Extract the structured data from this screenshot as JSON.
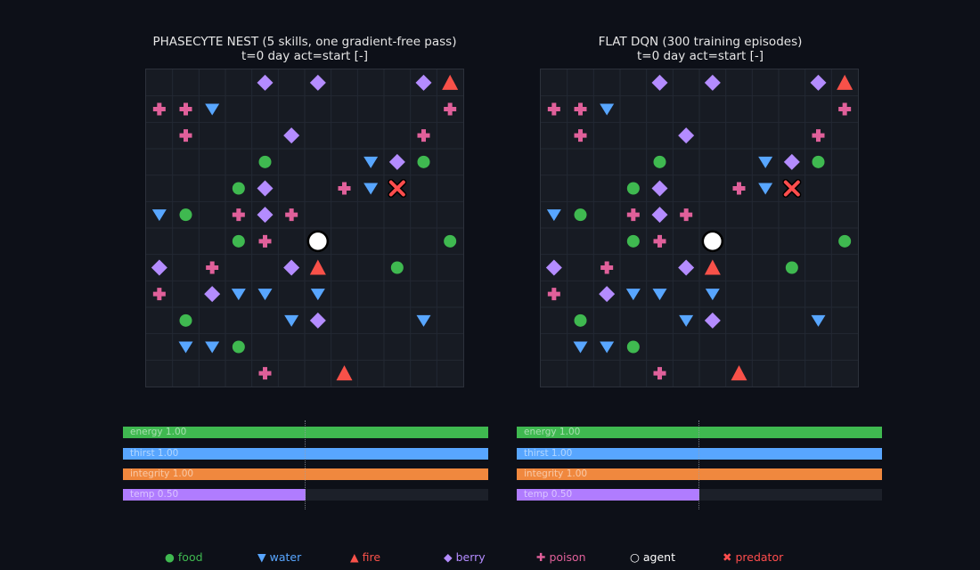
{
  "colors": {
    "food": "#3fb950",
    "water": "#58a6ff",
    "fire": "#f85149",
    "berry": "#b48cff",
    "poison": "#e0609a",
    "agent": "#ffffff",
    "predator": "#ff4d4d",
    "bar_energy": "#3fb950",
    "bar_thirst": "#58a6ff",
    "bar_integrity": "#f0883e",
    "bar_temp": "#b07cff"
  },
  "panels": [
    {
      "title_line1": "PHASECYTE NEST (5 skills, one gradient-free pass)",
      "title_line2": "t=0  day  act=start  [-]",
      "bars": [
        {
          "key": "energy",
          "label": "energy 1.00",
          "value": 1.0
        },
        {
          "key": "thirst",
          "label": "thirst 1.00",
          "value": 1.0
        },
        {
          "key": "integrity",
          "label": "integrity 1.00",
          "value": 1.0
        },
        {
          "key": "temp",
          "label": "temp 0.50",
          "value": 0.5
        }
      ]
    },
    {
      "title_line1": "FLAT DQN (300 training episodes)",
      "title_line2": "t=0  day  act=start  [-]",
      "bars": [
        {
          "key": "energy",
          "label": "energy 1.00",
          "value": 1.0
        },
        {
          "key": "thirst",
          "label": "thirst 1.00",
          "value": 1.0
        },
        {
          "key": "integrity",
          "label": "integrity 1.00",
          "value": 1.0
        },
        {
          "key": "temp",
          "label": "temp 0.50",
          "value": 0.5
        }
      ]
    }
  ],
  "grid_size": 12,
  "cells": [
    {
      "type": "berry",
      "col": 4,
      "row": 0
    },
    {
      "type": "berry",
      "col": 6,
      "row": 0
    },
    {
      "type": "berry",
      "col": 10,
      "row": 0
    },
    {
      "type": "fire",
      "col": 11,
      "row": 0
    },
    {
      "type": "poison",
      "col": 0,
      "row": 1
    },
    {
      "type": "poison",
      "col": 1,
      "row": 1
    },
    {
      "type": "water",
      "col": 2,
      "row": 1
    },
    {
      "type": "poison",
      "col": 11,
      "row": 1
    },
    {
      "type": "poison",
      "col": 1,
      "row": 2
    },
    {
      "type": "berry",
      "col": 5,
      "row": 2
    },
    {
      "type": "poison",
      "col": 10,
      "row": 2
    },
    {
      "type": "food",
      "col": 4,
      "row": 3
    },
    {
      "type": "water",
      "col": 8,
      "row": 3
    },
    {
      "type": "berry",
      "col": 9,
      "row": 3
    },
    {
      "type": "food",
      "col": 10,
      "row": 3
    },
    {
      "type": "food",
      "col": 3,
      "row": 4
    },
    {
      "type": "berry",
      "col": 4,
      "row": 4
    },
    {
      "type": "poison",
      "col": 7,
      "row": 4
    },
    {
      "type": "water",
      "col": 8,
      "row": 4
    },
    {
      "type": "predator",
      "col": 9,
      "row": 4
    },
    {
      "type": "water",
      "col": 0,
      "row": 5
    },
    {
      "type": "food",
      "col": 1,
      "row": 5
    },
    {
      "type": "poison",
      "col": 3,
      "row": 5
    },
    {
      "type": "berry",
      "col": 4,
      "row": 5
    },
    {
      "type": "poison",
      "col": 5,
      "row": 5
    },
    {
      "type": "food",
      "col": 3,
      "row": 6
    },
    {
      "type": "poison",
      "col": 4,
      "row": 6
    },
    {
      "type": "agent",
      "col": 6,
      "row": 6
    },
    {
      "type": "food",
      "col": 11,
      "row": 6
    },
    {
      "type": "berry",
      "col": 0,
      "row": 7
    },
    {
      "type": "poison",
      "col": 2,
      "row": 7
    },
    {
      "type": "berry",
      "col": 5,
      "row": 7
    },
    {
      "type": "fire",
      "col": 6,
      "row": 7
    },
    {
      "type": "food",
      "col": 9,
      "row": 7
    },
    {
      "type": "poison",
      "col": 0,
      "row": 8
    },
    {
      "type": "berry",
      "col": 2,
      "row": 8
    },
    {
      "type": "water",
      "col": 3,
      "row": 8
    },
    {
      "type": "water",
      "col": 4,
      "row": 8
    },
    {
      "type": "water",
      "col": 6,
      "row": 8
    },
    {
      "type": "food",
      "col": 1,
      "row": 9
    },
    {
      "type": "water",
      "col": 5,
      "row": 9
    },
    {
      "type": "berry",
      "col": 6,
      "row": 9
    },
    {
      "type": "water",
      "col": 10,
      "row": 9
    },
    {
      "type": "water",
      "col": 1,
      "row": 10
    },
    {
      "type": "water",
      "col": 2,
      "row": 10
    },
    {
      "type": "food",
      "col": 3,
      "row": 10
    },
    {
      "type": "poison",
      "col": 4,
      "row": 11
    },
    {
      "type": "fire",
      "col": 7,
      "row": 11
    }
  ],
  "legend": [
    {
      "type": "food",
      "symbol": "●",
      "label": "food"
    },
    {
      "type": "water",
      "symbol": "▼",
      "label": "water"
    },
    {
      "type": "fire",
      "symbol": "▲",
      "label": "fire"
    },
    {
      "type": "berry",
      "symbol": "◆",
      "label": "berry"
    },
    {
      "type": "poison",
      "symbol": "✚",
      "label": "poison"
    },
    {
      "type": "agent",
      "symbol": "○",
      "label": "agent"
    },
    {
      "type": "predator",
      "symbol": "✖",
      "label": "predator"
    }
  ]
}
